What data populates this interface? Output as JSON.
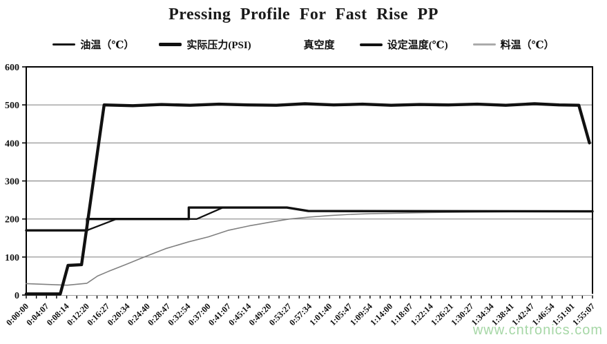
{
  "title": "Pressing  Profile  For Fast Rise PP",
  "watermark": "www.cntronics.com",
  "colors": {
    "line_black": "#111111",
    "line_gray": "#808080",
    "vacuum_white": "#ffffff",
    "grid": "#8a8a8a",
    "axis": "#000000",
    "watermark_green": "#a6d7a6"
  },
  "legend": [
    {
      "label": "油温（℃）",
      "color": "#111111",
      "thickness": 3
    },
    {
      "label": "实际压力(PSI)",
      "color": "#111111",
      "thickness": 5
    },
    {
      "label": "真空度",
      "color": "#ffffff",
      "thickness": 3
    },
    {
      "label": "设定温度(℃)",
      "color": "#111111",
      "thickness": 4
    },
    {
      "label": "料温（℃）",
      "color": "#aaaaaa",
      "thickness": 3
    }
  ],
  "chart_data": {
    "type": "line",
    "title": "Pressing Profile For Fast Rise PP",
    "legend_position": "top",
    "grid": "horizontal",
    "x_total_seconds": 6907,
    "x_axis": {
      "unit": "h:mm:ss",
      "minor_ticks_between_labels": 1,
      "tick_labels": [
        "0:00:00",
        "0:04:07",
        "0:08:14",
        "0:12:20",
        "0:16:27",
        "0:20:34",
        "0:24:40",
        "0:28:47",
        "0:32:54",
        "0:37:00",
        "0:41:07",
        "0:45:14",
        "0:49:20",
        "0:53:27",
        "0:57:34",
        "1:01:40",
        "1:05:47",
        "1:09:54",
        "1:14:00",
        "1:18:07",
        "1:22:14",
        "1:26:21",
        "1:30:27",
        "1:34:34",
        "1:38:41",
        "1:42:47",
        "1:46:54",
        "1:51:01",
        "1:55:07"
      ]
    },
    "y_axis": {
      "min": 0,
      "max": 600,
      "tick_step": 100,
      "tick_labels": [
        "0",
        "100",
        "200",
        "300",
        "400",
        "500",
        "600"
      ]
    },
    "series": [
      {
        "name": "真空度",
        "color": "#ffffff",
        "stroke_width": 2.5,
        "note": "not visible in chart (white / zero line)",
        "points": [
          [
            0,
            1
          ],
          [
            6907,
            1
          ]
        ]
      },
      {
        "name": "料温（℃）",
        "color": "#808080",
        "stroke_width": 1.6,
        "points": [
          [
            0,
            30
          ],
          [
            250,
            28
          ],
          [
            500,
            26
          ],
          [
            740,
            31
          ],
          [
            870,
            50
          ],
          [
            1000,
            62
          ],
          [
            1200,
            79
          ],
          [
            1440,
            100
          ],
          [
            1700,
            122
          ],
          [
            1980,
            140
          ],
          [
            2220,
            153
          ],
          [
            2460,
            170
          ],
          [
            2720,
            182
          ],
          [
            2960,
            191
          ],
          [
            3210,
            200
          ],
          [
            3450,
            205
          ],
          [
            3700,
            209
          ],
          [
            3950,
            212
          ],
          [
            4200,
            214
          ],
          [
            4450,
            215
          ],
          [
            4700,
            216
          ],
          [
            4950,
            217
          ],
          [
            5430,
            218
          ],
          [
            5920,
            219
          ],
          [
            6410,
            219
          ],
          [
            6907,
            220
          ]
        ]
      },
      {
        "name": "油温（℃）",
        "color": "#111111",
        "stroke_width": 2.3,
        "points": [
          [
            0,
            170
          ],
          [
            740,
            170
          ],
          [
            1100,
            200
          ],
          [
            2080,
            200
          ],
          [
            2400,
            230
          ],
          [
            3180,
            230
          ],
          [
            3440,
            221
          ],
          [
            4000,
            220
          ],
          [
            6907,
            220
          ]
        ]
      },
      {
        "name": "设定温度(℃)",
        "color": "#111111",
        "stroke_width": 3.4,
        "points": [
          [
            0,
            170
          ],
          [
            742,
            170
          ],
          [
            742,
            200
          ],
          [
            1983,
            200
          ],
          [
            1983,
            230
          ],
          [
            3180,
            230
          ],
          [
            3440,
            221
          ],
          [
            6907,
            220
          ]
        ]
      },
      {
        "name": "实际压力(PSI)",
        "color": "#111111",
        "stroke_width": 4.4,
        "points": [
          [
            0,
            3
          ],
          [
            415,
            3
          ],
          [
            510,
            78
          ],
          [
            675,
            80
          ],
          [
            950,
            500
          ],
          [
            1300,
            498
          ],
          [
            1650,
            501
          ],
          [
            2000,
            499
          ],
          [
            2350,
            502
          ],
          [
            2700,
            500
          ],
          [
            3050,
            499
          ],
          [
            3400,
            503
          ],
          [
            3750,
            500
          ],
          [
            4100,
            502
          ],
          [
            4450,
            499
          ],
          [
            4800,
            501
          ],
          [
            5150,
            500
          ],
          [
            5500,
            502
          ],
          [
            5850,
            499
          ],
          [
            6200,
            503
          ],
          [
            6500,
            500
          ],
          [
            6740,
            499
          ],
          [
            6870,
            400
          ]
        ]
      }
    ]
  }
}
